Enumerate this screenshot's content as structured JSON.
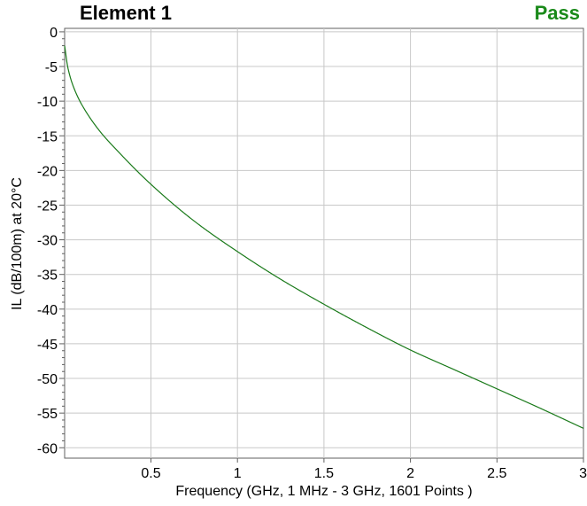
{
  "header": {
    "title": "Element 1",
    "status": "Pass",
    "status_color": "#1a8a1a"
  },
  "chart_data": {
    "type": "line",
    "title": "Element 1",
    "xlabel": "Frequency (GHz, 1 MHz - 3 GHz, 1601 Points )",
    "ylabel": "IL (dB/100m) at 20°C",
    "xlim": [
      0.001,
      3.0
    ],
    "ylim": [
      -61.5,
      0.5
    ],
    "xticks": [
      0.5,
      1,
      1.5,
      2,
      2.5,
      3
    ],
    "xtick_labels": [
      "0.5",
      "1",
      "1.5",
      "2",
      "2.5",
      "3"
    ],
    "yticks": [
      0,
      -5,
      -10,
      -15,
      -20,
      -25,
      -30,
      -35,
      -40,
      -45,
      -50,
      -55,
      -60
    ],
    "ytick_labels": [
      "0",
      "-5",
      "-10",
      "-15",
      "-20",
      "-25",
      "-30",
      "-35",
      "-40",
      "-45",
      "-50",
      "-55",
      "-60"
    ],
    "grid": true,
    "line_color": "#1a7a1a",
    "series": [
      {
        "x": [
          0.001,
          0.02,
          0.05,
          0.1,
          0.2,
          0.3,
          0.5,
          0.75,
          1.0,
          1.25,
          1.5,
          1.75,
          2.0,
          2.25,
          2.5,
          2.75,
          3.0
        ],
        "y": [
          -2.0,
          -5.2,
          -7.8,
          -10.5,
          -14.2,
          -17.0,
          -22.0,
          -27.3,
          -31.7,
          -35.7,
          -39.3,
          -42.7,
          -45.9,
          -48.7,
          -51.5,
          -54.3,
          -57.2
        ]
      }
    ]
  }
}
